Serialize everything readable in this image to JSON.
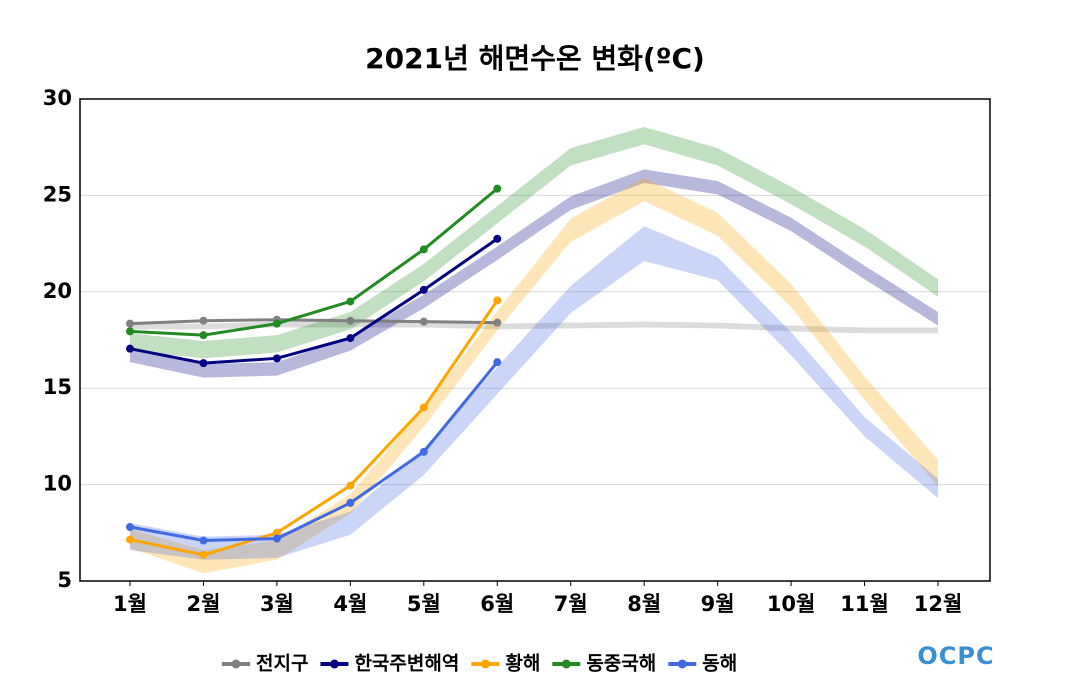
{
  "chart_data": {
    "type": "line",
    "title": "2021년 해면수온 변화(ºC)",
    "categories": [
      "1월",
      "2월",
      "3월",
      "4월",
      "5월",
      "6월",
      "7월",
      "8월",
      "9월",
      "10월",
      "11월",
      "12월"
    ],
    "ylim": [
      5,
      30
    ],
    "yticks": [
      5,
      10,
      15,
      20,
      25,
      30
    ],
    "grid": true,
    "legend": "bottom",
    "logo": "OCPC",
    "series": [
      {
        "name": "전지구",
        "color": "#808080",
        "values": [
          18.35,
          18.5,
          18.55,
          18.5,
          18.45,
          18.4,
          null,
          null,
          null,
          null,
          null,
          null
        ],
        "band_low": [
          18.05,
          18.05,
          18.15,
          18.15,
          18.15,
          18.05,
          18.1,
          18.15,
          18.1,
          17.95,
          17.85,
          17.85
        ],
        "band_high": [
          18.35,
          18.35,
          18.45,
          18.45,
          18.45,
          18.35,
          18.4,
          18.45,
          18.4,
          18.25,
          18.15,
          18.15
        ]
      },
      {
        "name": "한국주변해역",
        "color": "#000080",
        "values": [
          17.05,
          16.3,
          16.55,
          17.6,
          20.1,
          22.75,
          null,
          null,
          null,
          null,
          null,
          null
        ],
        "band_low": [
          16.35,
          15.55,
          15.65,
          16.95,
          19.15,
          21.65,
          24.25,
          25.65,
          25.05,
          23.15,
          20.65,
          18.25
        ],
        "band_high": [
          17.05,
          16.25,
          16.35,
          17.65,
          19.85,
          22.35,
          24.95,
          26.35,
          25.75,
          23.85,
          21.35,
          18.95
        ]
      },
      {
        "name": "황해",
        "color": "#ffa500",
        "values": [
          7.15,
          6.35,
          7.5,
          9.95,
          14.0,
          19.55,
          null,
          null,
          null,
          null,
          null,
          null
        ],
        "band_low": [
          6.7,
          5.4,
          6.1,
          8.5,
          13.0,
          18.0,
          22.6,
          24.7,
          22.9,
          19.2,
          14.4,
          9.9
        ],
        "band_high": [
          7.7,
          6.6,
          7.1,
          9.5,
          14.0,
          19.0,
          23.8,
          25.9,
          24.1,
          20.4,
          15.6,
          11.3
        ]
      },
      {
        "name": "동중국해",
        "color": "#228b22",
        "values": [
          17.95,
          17.75,
          18.35,
          19.5,
          22.2,
          25.35,
          null,
          null,
          null,
          null,
          null,
          null
        ],
        "band_low": [
          16.95,
          16.55,
          16.85,
          18.05,
          20.55,
          23.55,
          26.55,
          27.65,
          26.55,
          24.55,
          22.35,
          19.75
        ],
        "band_high": [
          17.85,
          17.45,
          17.75,
          18.95,
          21.45,
          24.45,
          27.45,
          28.55,
          27.45,
          25.45,
          23.25,
          20.65
        ]
      },
      {
        "name": "동해",
        "color": "#4169e1",
        "values": [
          7.8,
          7.1,
          7.2,
          9.05,
          11.7,
          16.35,
          null,
          null,
          null,
          null,
          null,
          null
        ],
        "band_low": [
          6.6,
          6.1,
          6.2,
          7.4,
          10.5,
          14.7,
          18.9,
          21.6,
          20.6,
          16.7,
          12.5,
          9.3
        ],
        "band_high": [
          8.0,
          7.3,
          7.4,
          8.6,
          11.9,
          16.1,
          20.3,
          23.4,
          21.8,
          17.9,
          13.5,
          10.3
        ]
      }
    ]
  }
}
